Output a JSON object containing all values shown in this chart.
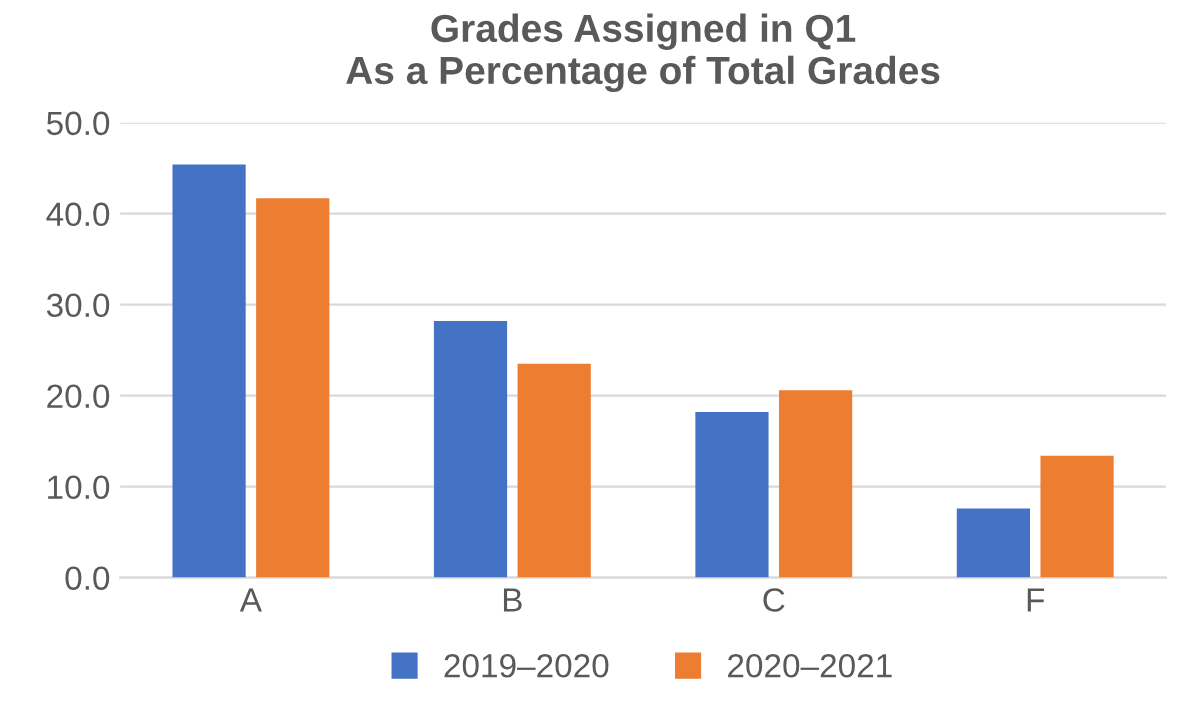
{
  "chart_data": {
    "type": "bar",
    "title": "Grades Assigned in Q1\nAs a Percentage of Total Grades",
    "categories": [
      "A",
      "B",
      "C",
      "F"
    ],
    "series": [
      {
        "name": "2019–2020",
        "color": "#4472c4",
        "values": [
          45.4,
          28.2,
          18.2,
          7.6
        ]
      },
      {
        "name": "2020–2021",
        "color": "#ed7d31",
        "values": [
          41.7,
          23.5,
          20.6,
          13.4
        ]
      }
    ],
    "ylim": [
      0,
      50
    ],
    "yticks": [
      {
        "value": 0,
        "label": "0.0"
      },
      {
        "value": 10,
        "label": "10.0"
      },
      {
        "value": 20,
        "label": "20.0"
      },
      {
        "value": 30,
        "label": "30.0"
      },
      {
        "value": 40,
        "label": "40.0"
      },
      {
        "value": 50,
        "label": "50.0"
      }
    ],
    "grid": "y",
    "legend": "bottom"
  }
}
